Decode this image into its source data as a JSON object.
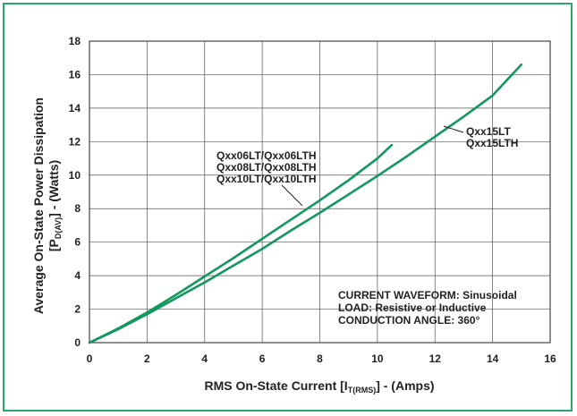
{
  "chart_data": {
    "type": "line",
    "title": "",
    "xlabel": {
      "main": "RMS On-State Current [I",
      "sub": "T(RMS)",
      "tail": "] - (Amps)"
    },
    "ylabel": {
      "line1": "Average On-State Power Dissipation",
      "line2_main": "[P",
      "line2_sub": "D(AV)",
      "line2_tail": "] - (Watts)"
    },
    "xlim": [
      0,
      16
    ],
    "ylim": [
      0,
      18
    ],
    "xticks": [
      "0",
      "2",
      "4",
      "6",
      "8",
      "10",
      "12",
      "14",
      "16"
    ],
    "yticks": [
      "0",
      "2",
      "4",
      "6",
      "8",
      "10",
      "12",
      "14",
      "16",
      "18"
    ],
    "grid": true,
    "series": [
      {
        "label_lines": [
          "Qxx06LT/Qxx06LTH",
          "Qxx08LT/Qxx08LTH",
          "Qxx10LT/Qxx10LTH"
        ],
        "x": [
          0,
          1,
          2,
          3,
          4,
          5,
          6,
          7,
          8,
          9,
          10,
          10.5
        ],
        "y": [
          0,
          0.85,
          1.8,
          2.85,
          3.95,
          5.05,
          6.2,
          7.35,
          8.5,
          9.7,
          11.0,
          11.8
        ]
      },
      {
        "label_lines": [
          "Qxx15LT",
          "Qxx15LTH"
        ],
        "x": [
          0,
          1,
          2,
          3,
          4,
          5,
          6,
          7,
          8,
          9,
          10,
          11,
          12,
          13,
          14,
          15
        ],
        "y": [
          0,
          0.8,
          1.7,
          2.65,
          3.6,
          4.6,
          5.6,
          6.7,
          7.75,
          8.85,
          9.95,
          11.1,
          12.3,
          13.5,
          14.75,
          16.6
        ]
      }
    ],
    "annotations": [
      "CURRENT WAVEFORM: Sinusoidal",
      "LOAD: Resistive or Inductive",
      "CONDUCTION ANGLE: 360°"
    ],
    "colors": {
      "curve": "#12985e",
      "frame": "#2aa86a"
    }
  }
}
